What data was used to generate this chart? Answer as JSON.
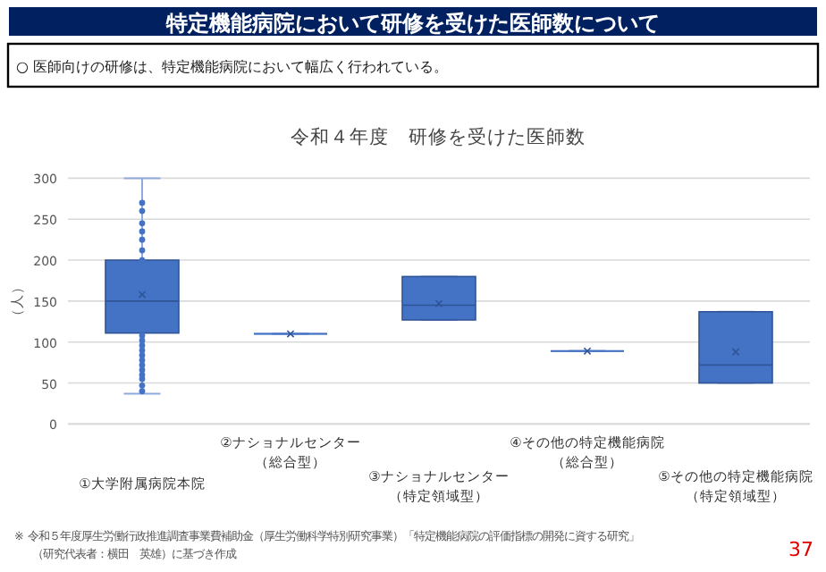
{
  "chart_data": {
    "type": "box",
    "title": "令和４年度　研修を受けた医師数",
    "ylabel": "（人）",
    "categories": [
      "①大学附属病院本院",
      "②ナショナルセンター（総合型）",
      "③ナショナルセンター（特定領域型）",
      "④その他の特定機能病院（総合型）",
      "⑤その他の特定機能病院（特定領域型）"
    ],
    "boxes": [
      {
        "low": 37,
        "q1": 111,
        "median": 150,
        "q3": 200,
        "high": 300,
        "mean": 158
      },
      {
        "low": 110,
        "q1": 110,
        "median": 110,
        "q3": 110,
        "high": 110,
        "mean": 110
      },
      {
        "low": 127,
        "q1": 127,
        "median": 145,
        "q3": 180,
        "high": 180,
        "mean": 147
      },
      {
        "low": 89,
        "q1": 89,
        "median": 89,
        "q3": 89,
        "high": 89,
        "mean": 89
      },
      {
        "low": 50,
        "q1": 50,
        "median": 72,
        "q3": 137,
        "high": 137,
        "mean": 88
      }
    ],
    "series": [
      {
        "type": "scatter",
        "color": "#4472c4",
        "x": [
          "①大学附属病院本院",
          "①大学附属病院本院",
          "①大学附属病院本院",
          "①大学附属病院本院",
          "①大学附属病院本院",
          "①大学附属病院本院",
          "①大学附属病院本院",
          "①大学附属病院本院",
          "①大学附属病院本院",
          "①大学附属病院本院",
          "①大学附属病院本院",
          "①大学附属病院本院",
          "①大学附属病院本院",
          "①大学附属病院本院",
          "①大学附属病院本院",
          "①大学附属病院本院",
          "①大学附属病院本院",
          "①大学附属病院本院",
          "①大学附属病院本院"
        ],
        "values": [
          40,
          47,
          55,
          60,
          66,
          72,
          78,
          84,
          90,
          96,
          102,
          108,
          200,
          212,
          225,
          235,
          245,
          260,
          270
        ]
      }
    ],
    "color": "#4472c4",
    "ylim": [
      0,
      300
    ],
    "yticks": [
      0,
      50,
      100,
      150,
      200,
      250,
      300
    ],
    "grid": "y",
    "annotations": [
      "特定機能病院において研修を受けた医師数について",
      "○ 医師向けの研修は、特定機能病院において幅広く行われている。",
      "※ 令和５年度厚生労働行政推進調査事業費補助金（厚生労働科学特別研究事業）「特定機能病院の評価指標の開発に資する研究」",
      "（研究代表者：横田　英雄）に基づき作成",
      "37"
    ]
  }
}
